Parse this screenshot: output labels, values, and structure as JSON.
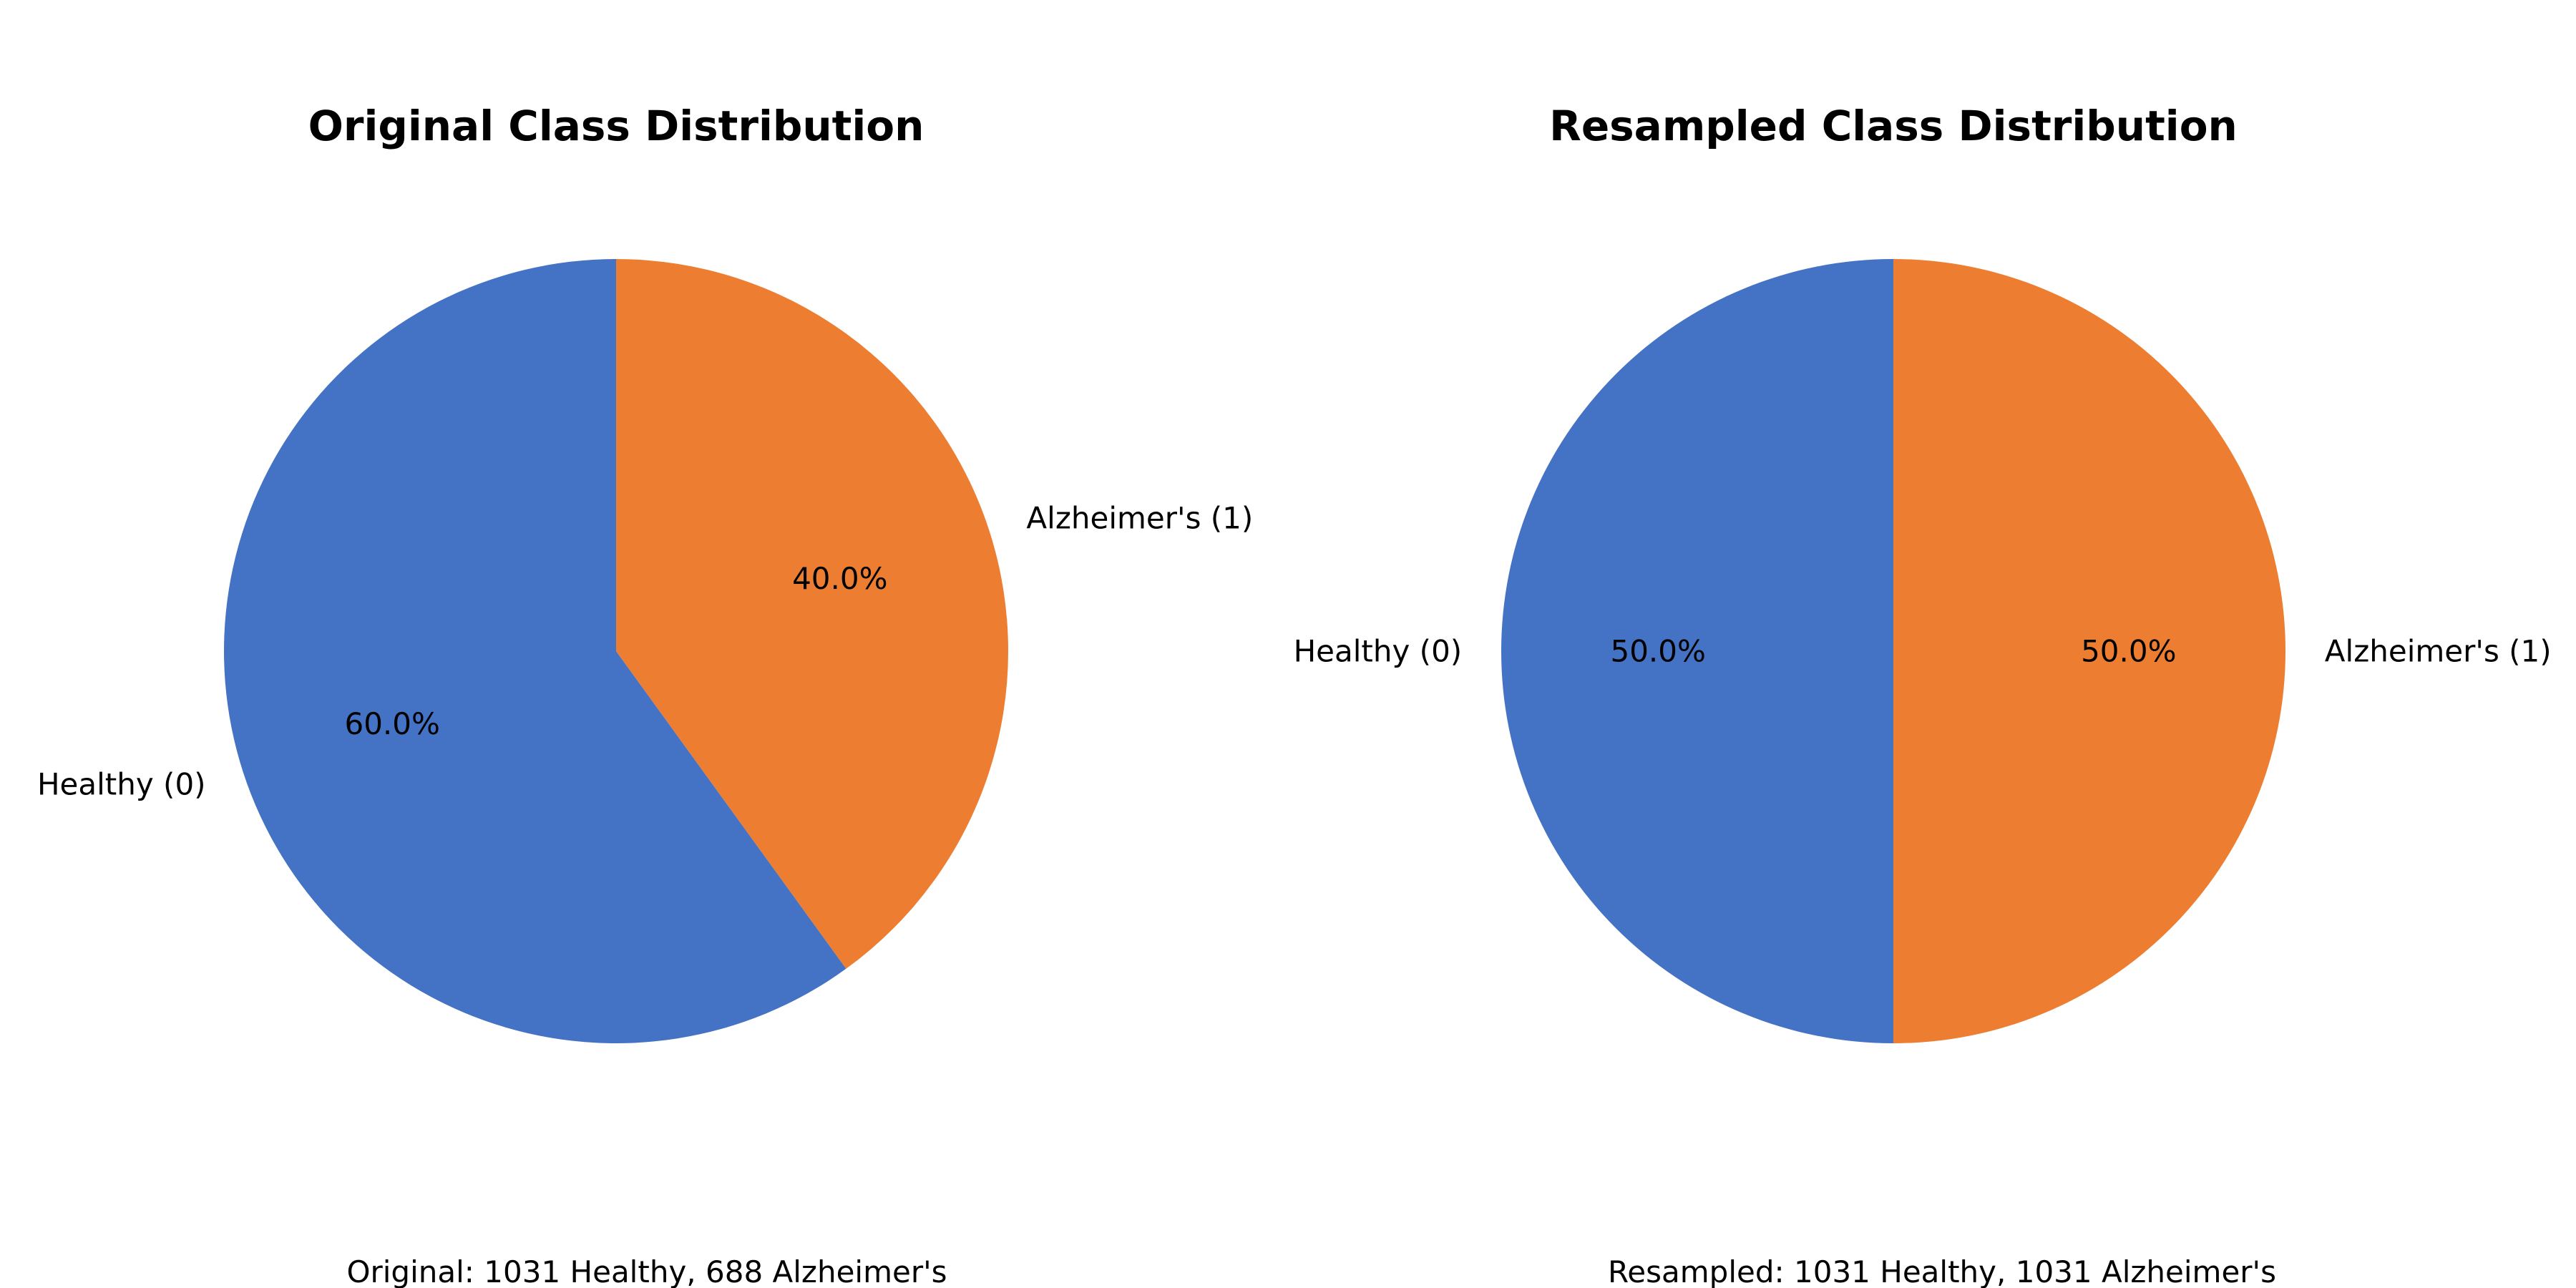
{
  "chart_data": [
    {
      "type": "pie",
      "title": "Original Class Distribution",
      "caption": "Original: 1031 Healthy, 688 Alzheimer's",
      "start_angle_deg": 90,
      "direction": "counterclockwise",
      "slices": [
        {
          "label": "Healthy (0)",
          "value": 1031,
          "percent_label": "60.0%",
          "color": "#4472C4"
        },
        {
          "label": "Alzheimer's (1)",
          "value": 688,
          "percent_label": "40.0%",
          "color": "#ED7D31"
        }
      ]
    },
    {
      "type": "pie",
      "title": "Resampled Class Distribution",
      "caption": "Resampled: 1031 Healthy, 1031 Alzheimer's",
      "start_angle_deg": 90,
      "direction": "counterclockwise",
      "slices": [
        {
          "label": "Healthy (0)",
          "value": 1031,
          "percent_label": "50.0%",
          "color": "#4472C4"
        },
        {
          "label": "Alzheimer's (1)",
          "value": 1031,
          "percent_label": "50.0%",
          "color": "#ED7D31"
        }
      ]
    }
  ]
}
